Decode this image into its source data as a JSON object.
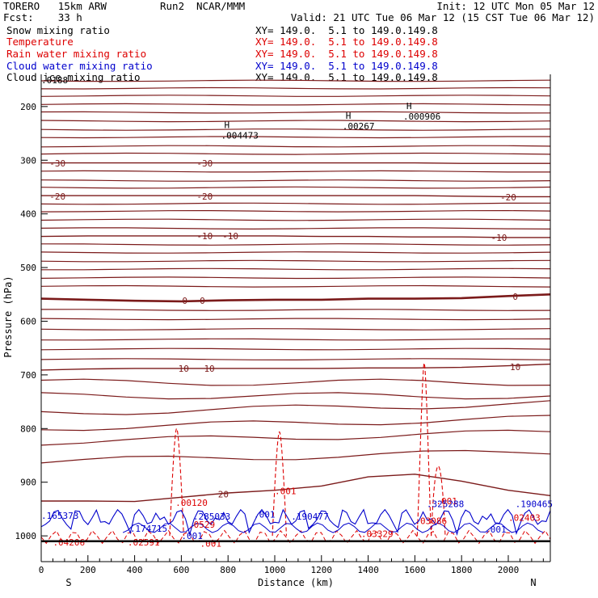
{
  "header": {
    "model": "TORERO   15km ARW",
    "run": "Run2",
    "org": "NCAR/MMM",
    "init": "Init: 12 UTC Mon 05 Mar 12",
    "fcst": "Fcst:    33 h",
    "valid": "Valid: 21 UTC Tue 06 Mar 12 (15 CST Tue 06 Mar 12)"
  },
  "fields": [
    {
      "name": "Snow mixing ratio",
      "xy": "XY= 149.0.  5.1 to 149.0.149.8",
      "color": "#000000"
    },
    {
      "name": "Temperature",
      "xy": "XY= 149.0.  5.1 to 149.0.149.8",
      "color": "#dd0000"
    },
    {
      "name": "Rain water mixing ratio",
      "xy": "XY= 149.0.  5.1 to 149.0.149.8",
      "color": "#dd0000"
    },
    {
      "name": "Cloud water mixing ratio",
      "xy": "XY= 149.0.  5.1 to 149.0.149.8",
      "color": "#0000cc"
    },
    {
      "name": "Cloud ice mixing ratio",
      "xy": "XY= 149.0.  5.1 to 149.0.149.8",
      "color": "#000000"
    }
  ],
  "chart_data": {
    "type": "cross-section contour",
    "xlabel": "Distance (km)",
    "ylabel": "Pressure (hPa)",
    "x_ticks": [
      "0",
      "200",
      "400",
      "600",
      "800",
      "1000",
      "1200",
      "1400",
      "1600",
      "1800",
      "2000"
    ],
    "x_tick_values": [
      0,
      200,
      400,
      600,
      800,
      1000,
      1200,
      1400,
      1600,
      1800,
      2000
    ],
    "y_ticks": [
      "200",
      "300",
      "400",
      "500",
      "600",
      "700",
      "800",
      "900",
      "1000"
    ],
    "y_tick_values": [
      200,
      300,
      400,
      500,
      600,
      700,
      800,
      900,
      1000
    ],
    "xlim": [
      0,
      2180
    ],
    "ylim_top_hPa": 140,
    "ylim_bottom_hPa": 1048,
    "end_labels": {
      "left": "S",
      "right": "N"
    },
    "colors": {
      "temperature": "#7b1a1a",
      "rain": "#dd0000",
      "cloud_water": "#0000cc",
      "axes": "#000000"
    },
    "temperature_isotherms": [
      {
        "T": -30,
        "p": [
          305,
          305,
          305,
          305,
          305,
          305,
          305,
          305,
          305,
          306,
          306,
          306
        ]
      },
      {
        "T": -20,
        "p": [
          366,
          366,
          366,
          366,
          366,
          366,
          366,
          366,
          366,
          367,
          368,
          368
        ]
      },
      {
        "T": -10,
        "p": [
          442,
          441,
          441,
          441,
          441,
          441,
          442,
          442,
          443,
          443,
          444,
          444
        ]
      },
      {
        "T": 0,
        "p": [
          558,
          560,
          562,
          563,
          561,
          560,
          560,
          558,
          558,
          557,
          553,
          550
        ]
      },
      {
        "T": 10,
        "p": [
          691,
          689,
          688,
          688,
          688,
          688,
          688,
          687,
          687,
          686,
          683,
          680
        ]
      },
      {
        "T": 20,
        "p": [
          935,
          935,
          936,
          928,
          920,
          915,
          907,
          890,
          885,
          898,
          915,
          925
        ]
      }
    ],
    "isotherm_x": [
      0,
      200,
      400,
      600,
      800,
      1000,
      1200,
      1400,
      1600,
      1800,
      2000,
      2180
    ],
    "other_isotherm_pressures": [
      152,
      166,
      180,
      196,
      211,
      227,
      243,
      257,
      274,
      288,
      321,
      338,
      351,
      381,
      395,
      411,
      427,
      457,
      472,
      488,
      503,
      519,
      535,
      579,
      596,
      615,
      634,
      652,
      671,
      714,
      739,
      762,
      790,
      816,
      852
    ],
    "isotherm_labels": [
      {
        "text": "-30",
        "x": 70,
        "p": 306
      },
      {
        "text": "-30",
        "x": 700,
        "p": 306
      },
      {
        "text": "-20",
        "x": 70,
        "p": 367
      },
      {
        "text": "-20",
        "x": 700,
        "p": 367
      },
      {
        "text": "-20",
        "x": 2000,
        "p": 369
      },
      {
        "text": "-10",
        "x": 700,
        "p": 441
      },
      {
        "text": "-10",
        "x": 810,
        "p": 441
      },
      {
        "text": "-10",
        "x": 1960,
        "p": 444
      },
      {
        "text": "0",
        "x": 615,
        "p": 562
      },
      {
        "text": "0",
        "x": 690,
        "p": 562
      },
      {
        "text": "0",
        "x": 2030,
        "p": 554
      },
      {
        "text": "10",
        "x": 610,
        "p": 688
      },
      {
        "text": "10",
        "x": 720,
        "p": 688
      },
      {
        "text": "10",
        "x": 2030,
        "p": 685
      },
      {
        "text": "20",
        "x": 780,
        "p": 922
      }
    ],
    "snow_maxima": [
      {
        "H": "H",
        "value": ".004473",
        "x": 770,
        "p": 243
      },
      {
        "H": "H",
        "value": ".00267",
        "x": 1290,
        "p": 226
      },
      {
        "H": "H",
        "value": ".000906",
        "x": 1550,
        "p": 208
      },
      {
        "H": "",
        "value": ".0188",
        "x": 0,
        "p": 140
      }
    ],
    "rain_labels": [
      {
        "text": ".00120",
        "x": 575,
        "p": 944
      },
      {
        "text": ".001",
        "x": 1000,
        "p": 922
      },
      {
        "text": ".001",
        "x": 1690,
        "p": 941
      },
      {
        "text": ".0529",
        "x": 630,
        "p": 985
      },
      {
        "text": ".03086",
        "x": 1600,
        "p": 978
      },
      {
        "text": ".03329",
        "x": 1370,
        "p": 1002
      },
      {
        "text": ".04206",
        "x": 50,
        "p": 1018
      },
      {
        "text": ".02591",
        "x": 370,
        "p": 1018
      },
      {
        "text": ".02403",
        "x": 2000,
        "p": 972
      },
      {
        "text": ".001",
        "x": 680,
        "p": 1020
      }
    ],
    "cloud_water_labels": [
      {
        "text": ".165373",
        "x": 0,
        "p": 968
      },
      {
        "text": ".174715",
        "x": 380,
        "p": 992
      },
      {
        "text": ".285033",
        "x": 650,
        "p": 970
      },
      {
        "text": ".001",
        "x": 910,
        "p": 966
      },
      {
        "text": ".190477",
        "x": 1070,
        "p": 970
      },
      {
        "text": ".325288",
        "x": 1650,
        "p": 946
      },
      {
        "text": ".190465",
        "x": 2030,
        "p": 946
      },
      {
        "text": ".001",
        "x": 600,
        "p": 1006
      },
      {
        "text": ".001",
        "x": 1900,
        "p": 994
      }
    ]
  }
}
